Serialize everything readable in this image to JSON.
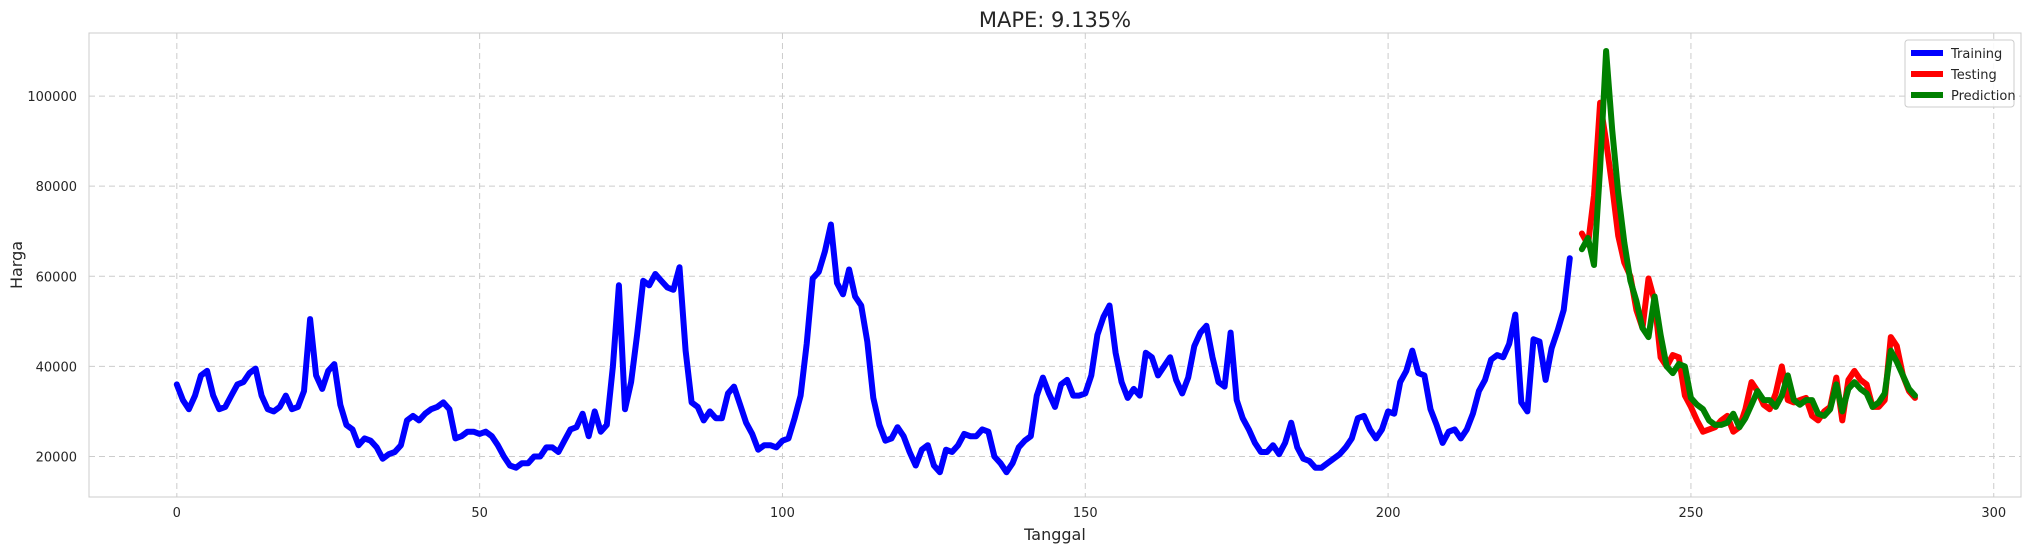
{
  "chart_data": {
    "type": "line",
    "title": "MAPE: 9.135%",
    "xlabel": "Tanggal",
    "ylabel": "Harga",
    "xlim": [
      -14.5,
      304.5
    ],
    "ylim": [
      11000,
      114000
    ],
    "xticks": [
      0,
      50,
      100,
      150,
      200,
      250,
      300
    ],
    "yticks": [
      20000,
      40000,
      60000,
      80000,
      100000
    ],
    "grid": true,
    "legend_position": "top-right",
    "series": [
      {
        "name": "Training",
        "color": "#0000ff",
        "x0": 0,
        "values": [
          36000,
          32500,
          30500,
          33500,
          38000,
          39000,
          33500,
          30500,
          31000,
          33500,
          36000,
          36500,
          38500,
          39500,
          33500,
          30500,
          30000,
          31000,
          33500,
          30500,
          31000,
          34500,
          50500,
          38000,
          35000,
          39000,
          40500,
          31500,
          27000,
          26000,
          22500,
          24000,
          23500,
          22000,
          19500,
          20500,
          21000,
          22500,
          28000,
          29000,
          28000,
          29500,
          30500,
          31000,
          32000,
          30500,
          24000,
          24500,
          25500,
          25500,
          25000,
          25500,
          24500,
          22500,
          20000,
          18000,
          17500,
          18500,
          18500,
          20000,
          20000,
          22000,
          22000,
          21000,
          23500,
          26000,
          26500,
          29500,
          24500,
          30000,
          25500,
          27000,
          40000,
          58000,
          30500,
          36500,
          47000,
          59000,
          58000,
          60500,
          59000,
          57500,
          57000,
          62000,
          43500,
          32000,
          31000,
          28000,
          30000,
          28500,
          28500,
          34000,
          35500,
          31500,
          27500,
          25000,
          21500,
          22500,
          22500,
          22000,
          23500,
          24000,
          28500,
          33500,
          45000,
          59500,
          61000,
          65500,
          71500,
          58500,
          56000,
          61500,
          55500,
          53500,
          45500,
          33000,
          27000,
          23500,
          24000,
          26500,
          24500,
          21000,
          18000,
          21500,
          22500,
          18000,
          16500,
          21500,
          21000,
          22500,
          25000,
          24500,
          24500,
          26000,
          25500,
          20000,
          18500,
          16500,
          18500,
          22000,
          23500,
          24500,
          33500,
          37500,
          34000,
          31000,
          36000,
          37000,
          33500,
          33500,
          34000,
          38000,
          47000,
          51000,
          53500,
          43000,
          36500,
          33000,
          35000,
          33500,
          43000,
          42000,
          38000,
          40000,
          42000,
          37000,
          34000,
          37500,
          44500,
          47500,
          49000,
          42000,
          36500,
          35500,
          47500,
          32500,
          28500,
          26000,
          23000,
          21000,
          21000,
          22500,
          20500,
          23000,
          27500,
          22000,
          19500,
          19000,
          17500,
          17500,
          18500,
          19500,
          20500,
          22000,
          24000,
          28500,
          29000,
          26000,
          24000,
          26000,
          30000,
          29500,
          36500,
          39000,
          43500,
          38500,
          38000,
          30500,
          27000,
          23000,
          25500,
          26000,
          24000,
          26000,
          29500,
          34500,
          37000,
          41500,
          42500,
          42000,
          45000,
          51500,
          32000,
          30000,
          46000,
          45500,
          37000,
          44000,
          48000,
          52500,
          64000
        ]
      },
      {
        "name": "Testing",
        "color": "#ff0000",
        "x0": 232,
        "values": [
          69500,
          67000,
          78000,
          98500,
          90000,
          80000,
          69000,
          63000,
          60000,
          52500,
          48500,
          59500,
          54500,
          42000,
          40000,
          42500,
          42000,
          33500,
          31000,
          28000,
          25500,
          26000,
          26500,
          28000,
          29000,
          25500,
          26500,
          30500,
          36500,
          34500,
          31500,
          30500,
          34000,
          40000,
          32500,
          32000,
          32500,
          33000,
          29000,
          28000,
          30000,
          31000,
          37500,
          28000,
          37000,
          39000,
          37000,
          36000,
          31000,
          31000,
          32500,
          46500,
          44500,
          38000,
          34500,
          33000
        ]
      },
      {
        "name": "Prediction",
        "color": "#008000",
        "x0": 232,
        "values": [
          66000,
          68500,
          62500,
          84000,
          110000,
          92500,
          78500,
          67500,
          59000,
          54500,
          48500,
          46500,
          55500,
          47000,
          40000,
          38500,
          40500,
          40000,
          33000,
          31500,
          30500,
          28000,
          27000,
          27000,
          27500,
          29500,
          26500,
          28500,
          31500,
          34500,
          32500,
          32500,
          31000,
          33500,
          38000,
          32500,
          31500,
          32500,
          32500,
          29500,
          29000,
          30500,
          36000,
          30000,
          35000,
          36500,
          35000,
          34000,
          31000,
          32000,
          34000,
          43500,
          41000,
          38000,
          35000,
          33500
        ]
      }
    ]
  }
}
